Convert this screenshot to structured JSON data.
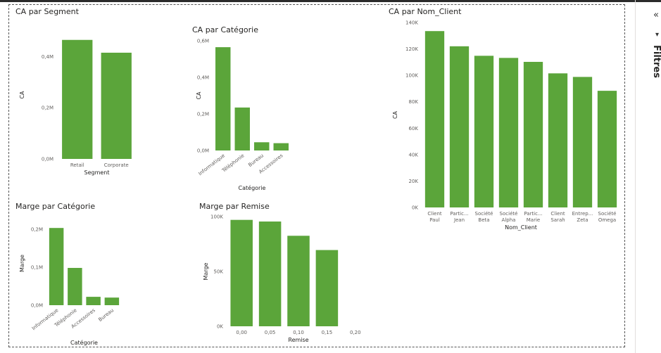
{
  "colors": {
    "bar": "#5BA53A"
  },
  "pane": {
    "collapse_icon": "«",
    "filter_icon": "▾",
    "label": "Filtres"
  },
  "chart_data": [
    {
      "id": "segment",
      "type": "bar",
      "title": "CA par Segment",
      "xlabel": "Segment",
      "ylabel": "CA",
      "categories": [
        [
          "Retail"
        ],
        [
          "Corporate"
        ]
      ],
      "values": [
        0.465,
        0.415
      ],
      "ylim": [
        0,
        0.5
      ],
      "ticks": [
        0,
        0.2,
        0.4
      ],
      "tick_labels": [
        "0,0M",
        "0,2M",
        "0,4M"
      ],
      "rotated": false
    },
    {
      "id": "categorie",
      "type": "bar",
      "title": "CA par Catégorie",
      "xlabel": "Catégorie",
      "ylabel": "CA",
      "categories": [
        [
          "Informatique"
        ],
        [
          "Téléphonie"
        ],
        [
          "Bureau"
        ],
        [
          "Accessoires"
        ]
      ],
      "values": [
        0.565,
        0.235,
        0.045,
        0.04
      ],
      "ylim": [
        0,
        0.6
      ],
      "ticks": [
        0,
        0.2,
        0.4,
        0.6
      ],
      "tick_labels": [
        "0,0M",
        "0,2M",
        "0,4M",
        "0,6M"
      ],
      "rotated": true
    },
    {
      "id": "client",
      "type": "bar",
      "title": "CA par Nom_Client",
      "xlabel": "Nom_Client",
      "ylabel": "CA",
      "categories": [
        [
          "Client",
          "Paul"
        ],
        [
          "Partic...",
          "Jean"
        ],
        [
          "Société",
          "Beta"
        ],
        [
          "Société",
          "Alpha"
        ],
        [
          "Partic...",
          "Marie"
        ],
        [
          "Client",
          "Sarah"
        ],
        [
          "Entrep...",
          "Zeta"
        ],
        [
          "Société",
          "Omega"
        ]
      ],
      "values": [
        133500,
        122000,
        114800,
        113200,
        110200,
        101500,
        98800,
        88300
      ],
      "ylim": [
        0,
        140000
      ],
      "ticks": [
        0,
        20000,
        40000,
        60000,
        80000,
        100000,
        120000,
        140000
      ],
      "tick_labels": [
        "0K",
        "20K",
        "40K",
        "60K",
        "80K",
        "100K",
        "120K",
        "140K"
      ],
      "rotated": false
    },
    {
      "id": "marge_cat",
      "type": "bar",
      "title": "Marge par Catégorie",
      "xlabel": "Catégorie",
      "ylabel": "Marge",
      "categories": [
        [
          "Informatique"
        ],
        [
          "Téléphonie"
        ],
        [
          "Accessoires"
        ],
        [
          "Bureau"
        ]
      ],
      "values": [
        0.203,
        0.098,
        0.022,
        0.02
      ],
      "ylim": [
        0,
        0.22
      ],
      "ticks": [
        0,
        0.1,
        0.2
      ],
      "tick_labels": [
        "0,0M",
        "0,1M",
        "0,2M"
      ],
      "rotated": true
    },
    {
      "id": "remise",
      "type": "bar",
      "title": "Marge par Remise",
      "xlabel": "Remise",
      "ylabel": "Marge",
      "categories": [
        [
          "0,00"
        ],
        [
          "0,05"
        ],
        [
          "0,10"
        ],
        [
          "0,15"
        ],
        [
          "0,20"
        ]
      ],
      "values": [
        97000,
        95500,
        82500,
        69500,
        0
      ],
      "ylim": [
        0,
        100000
      ],
      "ticks": [
        0,
        50000,
        100000
      ],
      "tick_labels": [
        "0K",
        "50K",
        "100K"
      ],
      "rotated": false
    }
  ]
}
